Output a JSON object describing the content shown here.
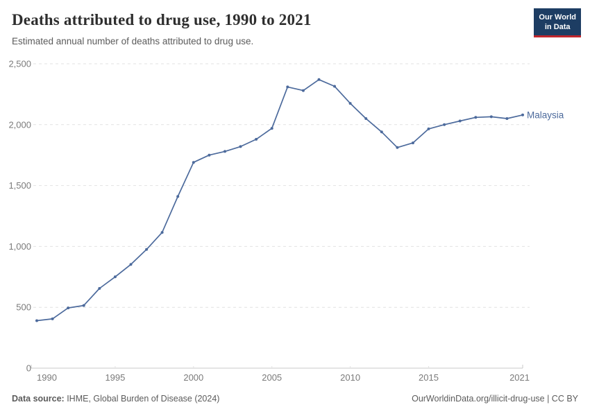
{
  "header": {
    "title": "Deaths attributed to drug use, 1990 to 2021",
    "subtitle": "Estimated annual number of deaths attributed to drug use."
  },
  "logo": {
    "line1": "Our World",
    "line2": "in Data",
    "bg_color": "#1d3d63",
    "accent_color": "#c0262d"
  },
  "chart_data": {
    "type": "line",
    "title": "Deaths attributed to drug use, 1990 to 2021",
    "xlabel": "",
    "ylabel": "",
    "xlim": [
      1990,
      2021
    ],
    "ylim": [
      0,
      2500
    ],
    "x_ticks": [
      1990,
      1995,
      2000,
      2005,
      2010,
      2015,
      2021
    ],
    "y_ticks": [
      0,
      500,
      1000,
      1500,
      2000,
      2500
    ],
    "grid": "horizontal-dashed",
    "legend_position": "end-of-line-label",
    "x": [
      1990,
      1991,
      1992,
      1993,
      1994,
      1995,
      1996,
      1997,
      1998,
      1999,
      2000,
      2001,
      2002,
      2003,
      2004,
      2005,
      2006,
      2007,
      2008,
      2009,
      2010,
      2011,
      2012,
      2013,
      2014,
      2015,
      2016,
      2017,
      2018,
      2019,
      2020,
      2021
    ],
    "series": [
      {
        "name": "Malaysia",
        "color": "#4c6a9c",
        "values": [
          390,
          405,
          495,
          515,
          655,
          750,
          852,
          975,
          1115,
          1410,
          1690,
          1750,
          1780,
          1820,
          1880,
          1970,
          2310,
          2280,
          2370,
          2315,
          2175,
          2050,
          1940,
          1812,
          1850,
          1965,
          2000,
          2030,
          2060,
          2065,
          2050,
          2080
        ]
      }
    ],
    "axis_color": "#c8c8c8",
    "grid_color": "#e2e2e2",
    "tick_label_color": "#7a7a7a"
  },
  "footer": {
    "source_label": "Data source:",
    "source_text": " IHME, Global Burden of Disease (2024)",
    "right_text": "OurWorldinData.org/illicit-drug-use | CC BY"
  }
}
